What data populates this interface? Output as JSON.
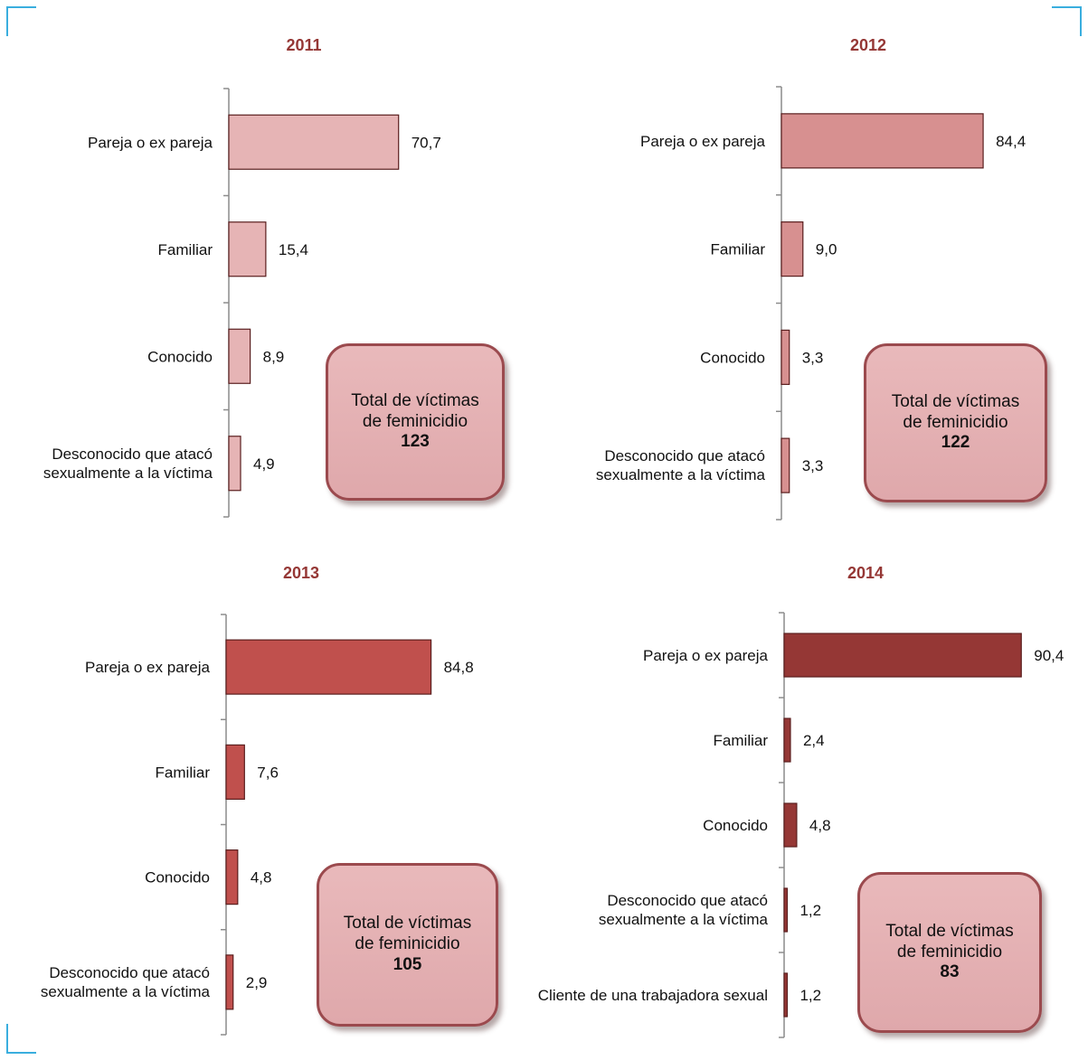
{
  "chart_data": [
    {
      "type": "bar",
      "title": "2011",
      "color": "#e6b4b5",
      "categories": [
        "Pareja o ex pareja",
        "Familiar",
        "Conocido",
        "Desconocido que atacó sexualmente a la víctima"
      ],
      "values": [
        70.7,
        15.4,
        8.9,
        4.9
      ],
      "value_labels": [
        "70,7",
        "15,4",
        "8,9",
        "4,9"
      ],
      "total_text": "Total de víctimas de feminicidio",
      "total_value": "123"
    },
    {
      "type": "bar",
      "title": "2012",
      "color": "#d79090",
      "categories": [
        "Pareja o ex pareja",
        "Familiar",
        "Conocido",
        "Desconocido que atacó sexualmente a la víctima"
      ],
      "values": [
        84.4,
        9.0,
        3.3,
        3.3
      ],
      "value_labels": [
        "84,4",
        "9,0",
        "3,3",
        "3,3"
      ],
      "total_text": "Total de víctimas de feminicidio",
      "total_value": "122"
    },
    {
      "type": "bar",
      "title": "2013",
      "color": "#c0504d",
      "categories": [
        "Pareja o ex pareja",
        "Familiar",
        "Conocido",
        "Desconocido que atacó sexualmente a la víctima"
      ],
      "values": [
        84.8,
        7.6,
        4.8,
        2.9
      ],
      "value_labels": [
        "84,8",
        "7,6",
        "4,8",
        "2,9"
      ],
      "total_text": "Total de víctimas de feminicidio",
      "total_value": "105"
    },
    {
      "type": "bar",
      "title": "2014",
      "color": "#953735",
      "categories": [
        "Pareja o ex pareja",
        "Familiar",
        "Conocido",
        "Desconocido que atacó sexualmente a la víctima",
        "Cliente de una trabajadora sexual"
      ],
      "values": [
        90.4,
        2.4,
        4.8,
        1.2,
        1.2
      ],
      "value_labels": [
        "90,4",
        "2,4",
        "4,8",
        "1,2",
        "1,2"
      ],
      "total_text": "Total de víctimas de feminicidio",
      "total_value": "83"
    }
  ],
  "colors": {
    "title": "#953735",
    "frame": "#3aaede",
    "axis": "#8c8c8c",
    "bar_stroke": "#5a1e1e"
  }
}
